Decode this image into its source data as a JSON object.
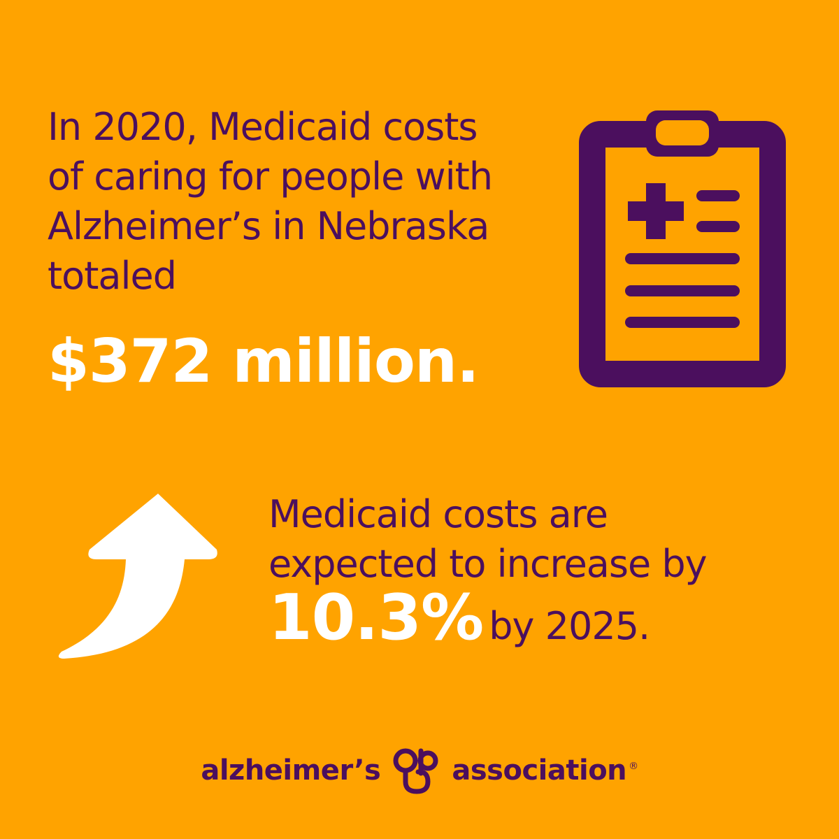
{
  "colors": {
    "background": "#FFA300",
    "primary_text": "#4B0F5E",
    "highlight_text": "#FFFFFF"
  },
  "intro": {
    "lines": [
      "In 2020, Medicaid costs",
      "of caring for people with",
      "Alzheimer’s in Nebraska",
      "totaled"
    ],
    "amount": "$372 million."
  },
  "projection": {
    "lines": [
      "Medicaid costs are",
      "expected to increase by"
    ],
    "percent": "10.3%",
    "suffix": "by 2025."
  },
  "icons": {
    "clipboard": "medical-clipboard-icon",
    "arrow": "upward-curved-arrow-icon",
    "logo_mark": "alzheimers-association-logo-mark-icon"
  },
  "logo": {
    "left_word": "alzheimer’s",
    "right_word": "association",
    "registered": "®"
  }
}
